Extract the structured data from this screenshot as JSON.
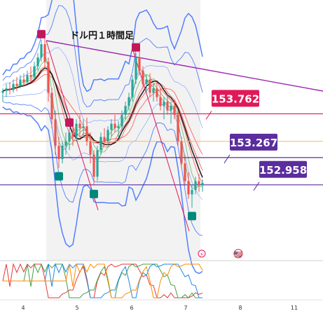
{
  "chart_data": {
    "type": "candlestick",
    "title": "ドル円１時間足",
    "x_ticks": [
      "4",
      "5",
      "6",
      "7",
      "8",
      "11"
    ],
    "price_levels": [
      {
        "label": "153.762",
        "value": 153.762,
        "color": "#e0195a"
      },
      {
        "label": "153.267",
        "value": 153.267,
        "color": "#5b2d9e"
      },
      {
        "label": "152.958",
        "value": 152.958,
        "color": "#5b2d9e"
      }
    ],
    "candles": [
      [
        154.0,
        154.05,
        153.9,
        154.02
      ],
      [
        154.02,
        154.1,
        153.95,
        154.05
      ],
      [
        154.05,
        154.12,
        153.98,
        154.03
      ],
      [
        154.03,
        154.15,
        154.0,
        154.1
      ],
      [
        154.1,
        154.18,
        154.02,
        154.08
      ],
      [
        154.08,
        154.2,
        154.05,
        154.15
      ],
      [
        154.15,
        154.22,
        154.08,
        154.12
      ],
      [
        154.12,
        154.25,
        154.1,
        154.2
      ],
      [
        154.2,
        154.3,
        154.12,
        154.18
      ],
      [
        154.18,
        154.35,
        154.15,
        154.3
      ],
      [
        154.3,
        154.45,
        154.25,
        154.4
      ],
      [
        154.4,
        154.6,
        154.35,
        154.55
      ],
      [
        154.55,
        154.65,
        154.3,
        154.35
      ],
      [
        154.35,
        154.4,
        153.9,
        154.0
      ],
      [
        154.0,
        154.05,
        153.6,
        153.7
      ],
      [
        153.7,
        153.8,
        153.3,
        153.4
      ],
      [
        153.4,
        153.5,
        153.15,
        153.25
      ],
      [
        153.25,
        153.45,
        153.2,
        153.4
      ],
      [
        153.4,
        153.55,
        153.3,
        153.45
      ],
      [
        153.45,
        153.6,
        153.35,
        153.55
      ],
      [
        153.55,
        153.65,
        153.4,
        153.5
      ],
      [
        153.5,
        153.7,
        153.45,
        153.65
      ],
      [
        153.65,
        153.75,
        153.5,
        153.6
      ],
      [
        153.6,
        153.7,
        153.5,
        153.62
      ],
      [
        153.62,
        153.72,
        153.4,
        153.45
      ],
      [
        153.45,
        153.55,
        153.2,
        153.3
      ],
      [
        153.3,
        153.35,
        152.95,
        153.05
      ],
      [
        153.05,
        153.4,
        153.0,
        153.35
      ],
      [
        153.35,
        153.55,
        153.3,
        153.5
      ],
      [
        153.5,
        153.6,
        153.4,
        153.45
      ],
      [
        153.45,
        153.62,
        153.4,
        153.58
      ],
      [
        153.58,
        153.7,
        153.5,
        153.65
      ],
      [
        153.65,
        153.75,
        153.55,
        153.6
      ],
      [
        153.6,
        153.68,
        153.5,
        153.62
      ],
      [
        153.62,
        153.8,
        153.58,
        153.75
      ],
      [
        153.75,
        153.9,
        153.7,
        153.85
      ],
      [
        153.85,
        154.0,
        153.8,
        153.95
      ],
      [
        153.95,
        154.2,
        153.9,
        154.15
      ],
      [
        154.15,
        154.45,
        154.1,
        154.4
      ],
      [
        154.4,
        154.5,
        154.2,
        154.25
      ],
      [
        154.25,
        154.3,
        154.05,
        154.1
      ],
      [
        154.1,
        154.2,
        154.0,
        154.15
      ],
      [
        154.15,
        154.22,
        153.95,
        154.0
      ],
      [
        154.0,
        154.1,
        153.9,
        154.05
      ],
      [
        154.05,
        154.12,
        153.9,
        153.95
      ],
      [
        153.95,
        154.05,
        153.8,
        153.85
      ],
      [
        153.85,
        153.95,
        153.7,
        153.9
      ],
      [
        153.9,
        153.98,
        153.75,
        153.8
      ],
      [
        153.8,
        153.9,
        153.65,
        153.85
      ],
      [
        153.85,
        153.92,
        153.7,
        153.75
      ],
      [
        153.75,
        153.8,
        153.4,
        153.45
      ],
      [
        153.45,
        153.5,
        153.15,
        153.2
      ],
      [
        153.2,
        153.3,
        152.95,
        153.0
      ],
      [
        153.0,
        153.1,
        152.8,
        152.85
      ],
      [
        152.85,
        152.95,
        152.7,
        152.9
      ],
      [
        152.9,
        153.05,
        152.85,
        153.0
      ],
      [
        153.0,
        153.08,
        152.88,
        152.95
      ],
      [
        152.95,
        153.02,
        152.88,
        152.98
      ]
    ],
    "markers": [
      {
        "i": 11,
        "kind": "high"
      },
      {
        "i": 19,
        "kind": "high"
      },
      {
        "i": 38,
        "kind": "high"
      },
      {
        "i": 16,
        "kind": "low"
      },
      {
        "i": 26,
        "kind": "low"
      },
      {
        "i": 54,
        "kind": "low"
      }
    ],
    "indicators": {
      "moving_average_colors": [
        "#000000",
        "#ff3b30",
        "#4caf50"
      ],
      "bollinger_color": "#2962ff",
      "trendline_color": "#9c27b0",
      "oscillator_colors": [
        "#e53935",
        "#43a047",
        "#1e88e5",
        "#fb8c00"
      ]
    }
  }
}
